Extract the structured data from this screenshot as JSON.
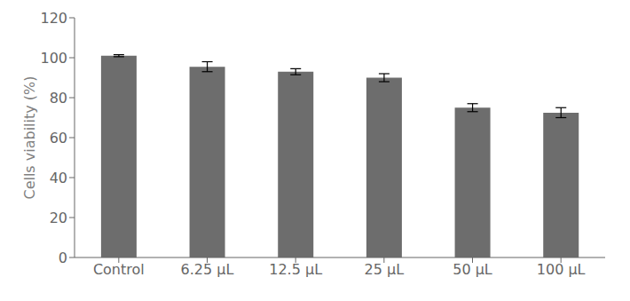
{
  "chart_data": {
    "type": "bar",
    "ylabel": "Cells viability (%)",
    "categories": [
      "Control",
      "6.25 μL",
      "12.5 μL",
      "25 μL",
      "50 μL",
      "100 μL"
    ],
    "values": [
      101.0,
      95.5,
      93.0,
      90.0,
      75.0,
      72.5
    ],
    "errors": [
      0.5,
      2.5,
      1.5,
      2.0,
      2.0,
      2.5
    ],
    "color": "#6d6d6d",
    "ylim": [
      0,
      120
    ],
    "yticks": [
      0,
      20,
      40,
      60,
      80,
      100,
      120
    ],
    "grid": false
  }
}
